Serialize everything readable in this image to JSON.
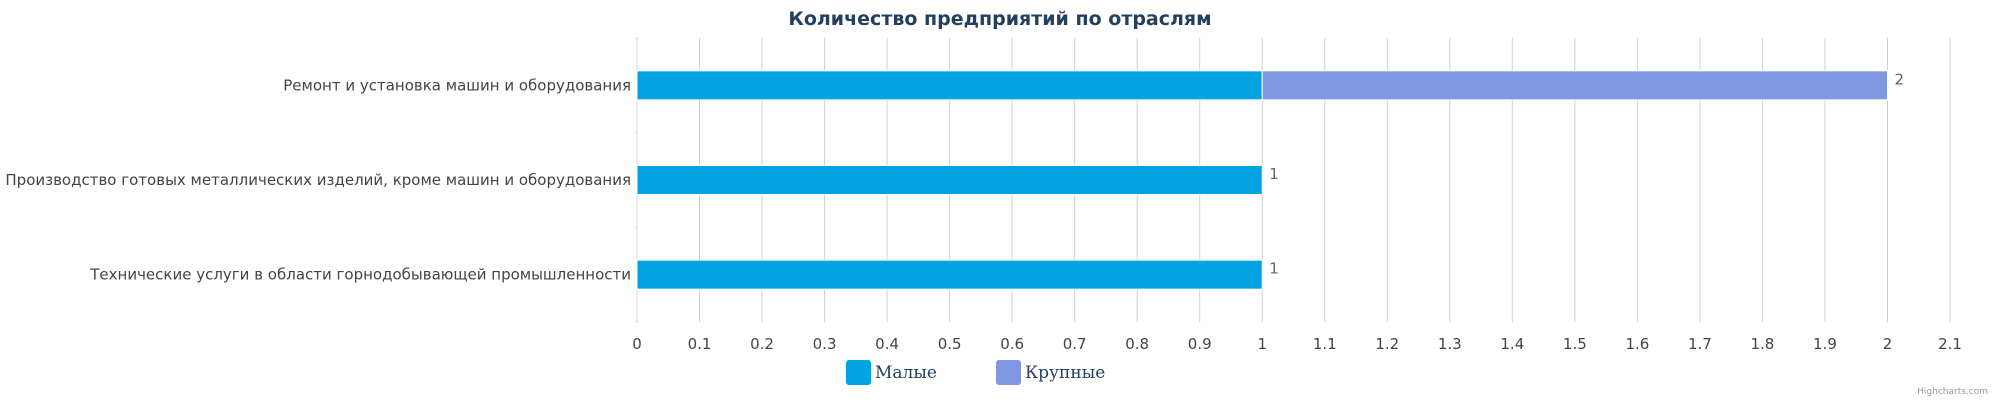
{
  "chart_data": {
    "type": "bar",
    "orientation": "horizontal",
    "stacked": true,
    "title": "Количество предприятий по отраслям",
    "categories": [
      "Ремонт и установка машин и оборудования",
      "Производство готовых металлических изделий, кроме машин и оборудования",
      "Технические услуги в области горнодобывающей промышленности"
    ],
    "series": [
      {
        "name": "Малые",
        "color": "#00a3e0",
        "values": [
          1,
          1,
          1
        ]
      },
      {
        "name": "Крупные",
        "color": "#7f96e0",
        "values": [
          1,
          0,
          0
        ]
      }
    ],
    "totals": [
      2,
      1,
      1
    ],
    "data_labels": [
      "2",
      "1",
      "1"
    ],
    "xlim": [
      0,
      2.1
    ],
    "ticks": [
      "0",
      "0.1",
      "0.2",
      "0.3",
      "0.4",
      "0.5",
      "0.6",
      "0.7",
      "0.8",
      "0.9",
      "1",
      "1.1",
      "1.2",
      "1.3",
      "1.4",
      "1.5",
      "1.6",
      "1.7",
      "1.8",
      "1.9",
      "2",
      "2.1"
    ],
    "grid": true,
    "legend_position": "bottom-center",
    "credit": "Highcharts.com"
  }
}
